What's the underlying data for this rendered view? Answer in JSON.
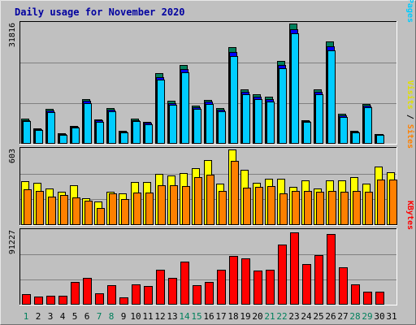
{
  "chart_data": {
    "type": "bar",
    "title": "Daily usage for November 2020",
    "categories": [
      "1",
      "2",
      "3",
      "4",
      "5",
      "6",
      "7",
      "8",
      "9",
      "10",
      "11",
      "12",
      "13",
      "14",
      "15",
      "16",
      "17",
      "18",
      "19",
      "20",
      "21",
      "22",
      "23",
      "24",
      "25",
      "26",
      "27",
      "28",
      "29",
      "30",
      "31"
    ],
    "weekend_days": [
      1,
      7,
      8,
      14,
      15,
      21,
      22,
      28,
      29
    ],
    "panels": [
      {
        "id": "hits",
        "ylabel_parts": [
          "Pages",
          "Files",
          "Hits"
        ],
        "ymax_label": "31816",
        "ymax": 31816,
        "series": [
          {
            "name": "Hits",
            "color": "#00805c",
            "values": [
              6600,
              4100,
              9200,
              2700,
              4800,
              11900,
              6500,
              9400,
              3400,
              6600,
              5700,
              18600,
              11300,
              20800,
              10200,
              11600,
              9500,
              25500,
              14500,
              13100,
              12400,
              21900,
              31816,
              6300,
              14400,
              27100,
              7900,
              3400,
              10600,
              2600,
              0
            ]
          },
          {
            "name": "Files",
            "color": "#0000ff",
            "values": [
              6300,
              3900,
              8800,
              2600,
              4600,
              11300,
              6200,
              9000,
              3200,
              6300,
              5500,
              17700,
              10800,
              19800,
              9700,
              11100,
              9100,
              24300,
              13800,
              12500,
              11800,
              20900,
              30300,
              6000,
              13700,
              25800,
              7500,
              3200,
              10100,
              2500,
              0
            ]
          },
          {
            "name": "Pages",
            "color": "#00ccff",
            "values": [
              6100,
              3700,
              8400,
              2400,
              4300,
              10800,
              5900,
              8600,
              3000,
              6000,
              5200,
              16900,
              10300,
              18900,
              9200,
              10600,
              8700,
              23300,
              13200,
              11900,
              11200,
              19900,
              29300,
              5700,
              13100,
              24700,
              7100,
              3000,
              9600,
              2300,
              0
            ]
          }
        ]
      },
      {
        "id": "visits",
        "ylabel_parts": [
          "Sites",
          "Visits"
        ],
        "ymax_label": "603",
        "ymax": 603,
        "series": [
          {
            "name": "Visits",
            "color": "#ffff00",
            "values": [
              350,
              335,
              290,
              265,
              315,
              215,
              190,
              265,
              250,
              345,
              345,
              408,
              398,
              415,
              455,
              518,
              332,
              603,
              440,
              340,
              370,
              370,
              305,
              355,
              290,
              358,
              355,
              380,
              330,
              466,
              420
            ],
            "fill_only": [
              false,
              false,
              false,
              false,
              false,
              false,
              false,
              false,
              false,
              false,
              false,
              false,
              false,
              false,
              false,
              false,
              false,
              false,
              false,
              false,
              false,
              false,
              false,
              false,
              false,
              false,
              false,
              false,
              false,
              false,
              false
            ]
          },
          {
            "name": "Sites",
            "color": "#ff8000",
            "values": [
              285,
              275,
              225,
              240,
              220,
              195,
              135,
              255,
              205,
              260,
              260,
              320,
              320,
              310,
              380,
              400,
              275,
              510,
              300,
              305,
              310,
              255,
              270,
              270,
              265,
              270,
              265,
              275,
              265,
              365,
              365
            ]
          }
        ]
      },
      {
        "id": "kbytes",
        "ylabel_parts": [
          "KBytes"
        ],
        "ymax_label": "91227",
        "ymax": 91227,
        "series": [
          {
            "name": "KBytes",
            "color": "#ff0000",
            "values": [
              13000,
              10500,
              11500,
              10700,
              28000,
              33000,
              14500,
              24000,
              8700,
              25000,
              23000,
              43000,
              33000,
              53000,
              24000,
              28000,
              43000,
              60000,
              57000,
              42000,
              43000,
              74000,
              89000,
              50000,
              61000,
              87000,
              46000,
              25000,
              16500,
              16500,
              0
            ]
          }
        ]
      }
    ]
  }
}
